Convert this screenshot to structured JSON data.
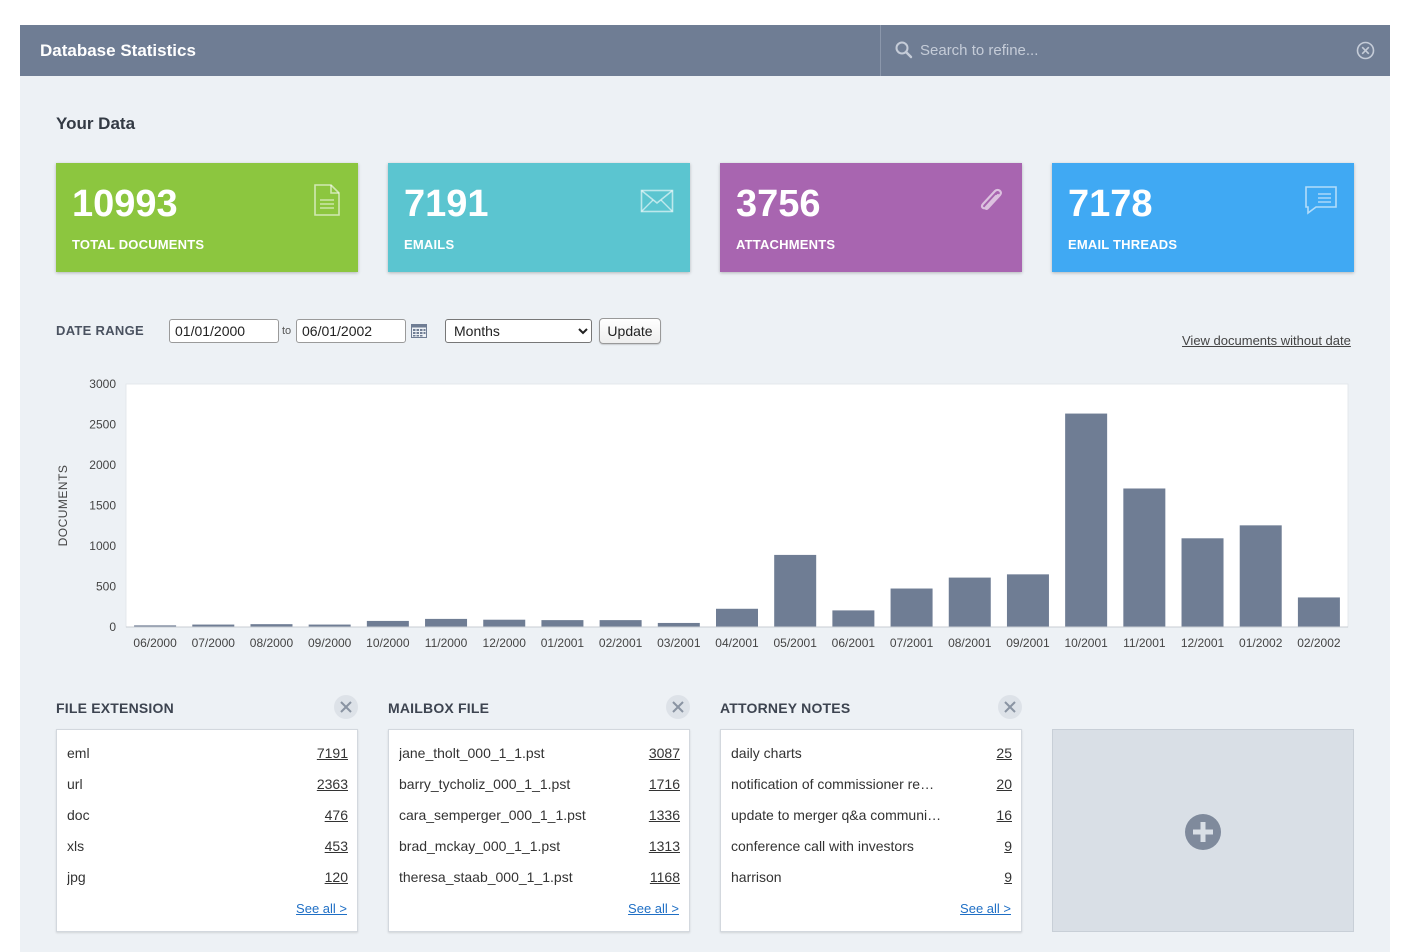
{
  "header": {
    "title": "Database Statistics",
    "search_placeholder": "Search to refine..."
  },
  "section_title": "Your Data",
  "cards": [
    {
      "value": "10993",
      "label": "TOTAL DOCUMENTS",
      "color": "#8cc63f",
      "icon": "document-icon"
    },
    {
      "value": "7191",
      "label": "EMAILS",
      "color": "#5bc5d0",
      "icon": "envelope-icon"
    },
    {
      "value": "3756",
      "label": "ATTACHMENTS",
      "color": "#a865b0",
      "icon": "paperclip-icon"
    },
    {
      "value": "7178",
      "label": "EMAIL THREADS",
      "color": "#40a9f3",
      "icon": "chat-bubble-icon"
    }
  ],
  "date_range": {
    "label": "DATE RANGE",
    "from": "01/01/2000",
    "to_label": "to",
    "to": "06/01/2002",
    "granularity": "Months",
    "update_label": "Update",
    "no_date_link": "View documents without date"
  },
  "chart_data": {
    "type": "bar",
    "ylabel": "DOCUMENTS",
    "xlabel": "",
    "ylim": [
      0,
      3000
    ],
    "yticks": [
      0,
      500,
      1000,
      1500,
      2000,
      2500,
      3000
    ],
    "grid": false,
    "bar_color": "#6f7d94",
    "categories": [
      "06/2000",
      "07/2000",
      "08/2000",
      "09/2000",
      "10/2000",
      "11/2000",
      "12/2000",
      "01/2001",
      "02/2001",
      "03/2001",
      "04/2001",
      "05/2001",
      "06/2001",
      "07/2001",
      "08/2001",
      "09/2001",
      "10/2001",
      "11/2001",
      "12/2001",
      "01/2002",
      "02/2002"
    ],
    "values": [
      20,
      30,
      35,
      30,
      75,
      100,
      90,
      85,
      85,
      50,
      225,
      890,
      205,
      475,
      610,
      650,
      2635,
      1710,
      1095,
      1255,
      365
    ]
  },
  "panels": [
    {
      "title": "FILE EXTENSION",
      "rows": [
        {
          "name": "eml",
          "count": "7191"
        },
        {
          "name": "url",
          "count": "2363"
        },
        {
          "name": "doc",
          "count": "476"
        },
        {
          "name": "xls",
          "count": "453"
        },
        {
          "name": "jpg",
          "count": "120"
        }
      ],
      "see_all": "See all >"
    },
    {
      "title": "MAILBOX FILE",
      "rows": [
        {
          "name": "jane_tholt_000_1_1.pst",
          "count": "3087"
        },
        {
          "name": "barry_tycholiz_000_1_1.pst",
          "count": "1716"
        },
        {
          "name": "cara_semperger_000_1_1.pst",
          "count": "1336"
        },
        {
          "name": "brad_mckay_000_1_1.pst",
          "count": "1313"
        },
        {
          "name": "theresa_staab_000_1_1.pst",
          "count": "1168"
        }
      ],
      "see_all": "See all >"
    },
    {
      "title": "ATTORNEY NOTES",
      "rows": [
        {
          "name": "daily charts",
          "count": "25"
        },
        {
          "name": "notification of commissioner re…",
          "count": "20"
        },
        {
          "name": "update to merger q&a communi…",
          "count": "16"
        },
        {
          "name": "conference call with investors",
          "count": "9"
        },
        {
          "name": "harrison",
          "count": "9"
        }
      ],
      "see_all": "See all >"
    }
  ]
}
